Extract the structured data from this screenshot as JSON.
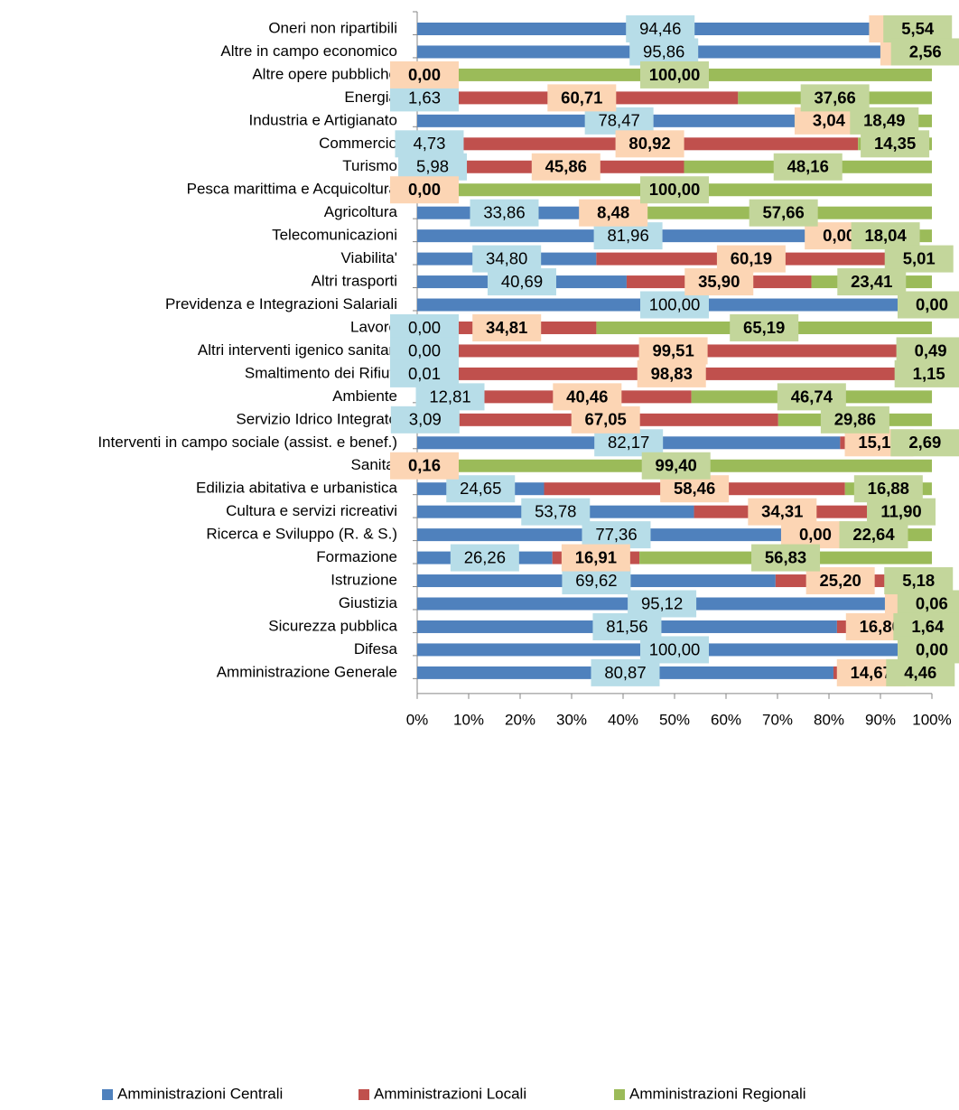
{
  "chart_data": {
    "type": "stacked-bar-horizontal",
    "categories": [
      "Oneri non ripartibili",
      "Altre in campo economico",
      "Altre opere pubbliche",
      "Energia",
      "Industria e Artigianato",
      "Commercio",
      "Turismo",
      "Pesca marittima e Acquicoltura",
      "Agricoltura",
      "Telecomunicazioni",
      "Viabilita'",
      "Altri trasporti",
      "Previdenza e Integrazioni Salariali",
      "Lavoro",
      "Altri interventi igenico sanitari",
      "Smaltimento dei Rifiuti",
      "Ambiente",
      "Servizio Idrico Integrato",
      "Interventi in campo sociale (assist. e benef.)",
      "Sanita'",
      "Edilizia abitativa e urbanistica",
      "Cultura e servizi ricreativi",
      "Ricerca e Sviluppo (R. & S.)",
      "Formazione",
      "Istruzione",
      "Giustizia",
      "Sicurezza pubblica",
      "Difesa",
      "Amministrazione Generale"
    ],
    "series": [
      {
        "name": "Amministrazioni Centrali",
        "color": "#4f81bd",
        "label_box": "#b7dde8",
        "bold": false,
        "values": [
          94.46,
          95.86,
          0,
          1.63,
          78.47,
          4.73,
          5.98,
          0,
          33.86,
          81.96,
          34.8,
          40.69,
          100,
          0,
          0,
          0.01,
          12.81,
          3.09,
          82.17,
          0.44,
          24.65,
          53.78,
          77.36,
          26.26,
          69.62,
          95.12,
          81.56,
          100,
          80.87
        ],
        "value_labels": [
          "94,46",
          "95,86",
          null,
          "1,63",
          "78,47",
          "4,73",
          "5,98",
          null,
          "33,86",
          "81,96",
          "34,80",
          "40,69",
          "100,00",
          "0,00",
          "0,00",
          "0,01",
          "12,81",
          "3,09",
          "82,17",
          null,
          "24,65",
          "53,78",
          "77,36",
          "26,26",
          "69,62",
          "95,12",
          "81,56",
          "100,00",
          "80,87"
        ]
      },
      {
        "name": "Amministrazioni Locali",
        "color": "#c0504d",
        "label_box": "#fcd5b4",
        "bold": true,
        "values": [
          0,
          1.58,
          0,
          60.71,
          3.04,
          80.92,
          45.86,
          0,
          8.48,
          0,
          60.19,
          35.9,
          0,
          34.81,
          99.51,
          98.83,
          40.46,
          67.05,
          15.14,
          0.16,
          58.46,
          34.31,
          0,
          16.91,
          25.2,
          4.82,
          16.8,
          0,
          14.67
        ],
        "value_labels": [
          "0,00",
          "1,58",
          "0,00",
          "60,71",
          "3,04",
          "80,92",
          "45,86",
          "0,00",
          "8,48",
          "0,00",
          "60,19",
          "35,90",
          null,
          "34,81",
          "99,51",
          "98,83",
          "40,46",
          "67,05",
          "15,14",
          "0,16",
          "58,46",
          "34,31",
          "0,00",
          "16,91",
          "25,20",
          "4,82",
          "16,80",
          null,
          "14,67"
        ]
      },
      {
        "name": "Amministrazioni Regionali",
        "color": "#9bbb59",
        "label_box": "#c3d69b",
        "bold": true,
        "values": [
          5.54,
          2.56,
          100,
          37.66,
          18.49,
          14.35,
          48.16,
          100,
          57.66,
          18.04,
          5.01,
          23.41,
          0,
          65.19,
          0.49,
          1.15,
          46.74,
          29.86,
          2.69,
          99.4,
          16.88,
          11.9,
          22.64,
          56.83,
          5.18,
          0.06,
          1.64,
          0,
          4.46
        ],
        "value_labels": [
          "5,54",
          "2,56",
          "100,00",
          "37,66",
          "18,49",
          "14,35",
          "48,16",
          "100,00",
          "57,66",
          "18,04",
          "5,01",
          "23,41",
          "0,00",
          "65,19",
          "0,49",
          "1,15",
          "46,74",
          "29,86",
          "2,69",
          "99,40",
          "16,88",
          "11,90",
          "22,64",
          "56,83",
          "5,18",
          "0,06",
          "1,64",
          "0,00",
          "4,46"
        ]
      }
    ],
    "xlim": [
      0,
      100
    ],
    "xticks": [
      {
        "value": 0,
        "label": "0%"
      },
      {
        "value": 10,
        "label": "10%"
      },
      {
        "value": 20,
        "label": "20%"
      },
      {
        "value": 30,
        "label": "30%"
      },
      {
        "value": 40,
        "label": "40%"
      },
      {
        "value": 50,
        "label": "50%"
      },
      {
        "value": 60,
        "label": "60%"
      },
      {
        "value": 70,
        "label": "70%"
      },
      {
        "value": 80,
        "label": "80%"
      },
      {
        "value": 90,
        "label": "90%"
      },
      {
        "value": 100,
        "label": "100%"
      }
    ],
    "legend": "bottom"
  }
}
